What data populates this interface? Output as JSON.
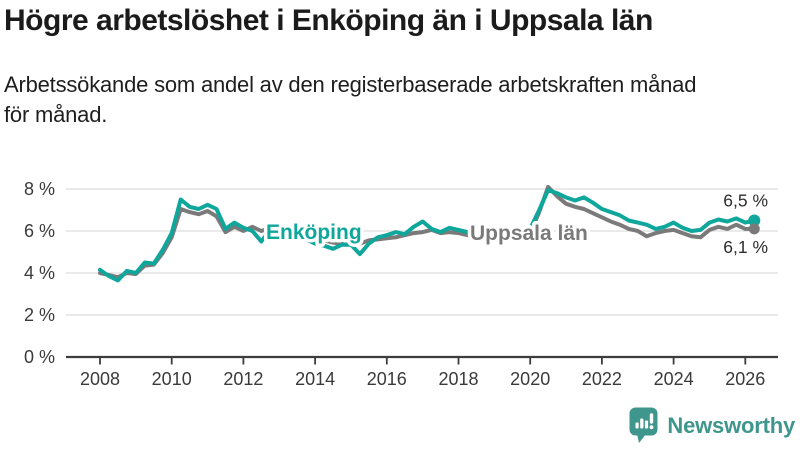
{
  "header": {
    "title": "Högre arbetslöshet i Enköping än i Uppsala län",
    "subtitle": "Arbetssökande som andel av den registerbaserade arbetskraften månad för månad."
  },
  "chart_data": {
    "type": "line",
    "title": "",
    "xlabel": "",
    "ylabel": "",
    "grid": "horizontal",
    "legend_position": "inline-labels-on-lines",
    "ylim": [
      0,
      8.6
    ],
    "xlim": [
      2007.1,
      2026.7
    ],
    "yticks": [
      0,
      2,
      4,
      6,
      8
    ],
    "ytick_labels": [
      "0 %",
      "2 %",
      "4 %",
      "6 %",
      "8 %"
    ],
    "xticks": [
      2008,
      2010,
      2012,
      2014,
      2016,
      2018,
      2020,
      2022,
      2024,
      2026
    ],
    "x": [
      2008,
      2008.25,
      2008.5,
      2008.75,
      2009,
      2009.25,
      2009.5,
      2009.75,
      2010,
      2010.25,
      2010.5,
      2010.75,
      2011,
      2011.25,
      2011.5,
      2011.75,
      2012,
      2012.25,
      2012.5,
      2012.75,
      2013,
      2013.25,
      2013.5,
      2013.75,
      2014,
      2014.25,
      2014.5,
      2014.75,
      2015,
      2015.25,
      2015.5,
      2015.75,
      2016,
      2016.25,
      2016.5,
      2016.75,
      2017,
      2017.25,
      2017.5,
      2017.75,
      2018,
      2018.25,
      2018.5,
      2018.75,
      2019,
      2019.25,
      2019.5,
      2019.75,
      2020,
      2020.25,
      2020.5,
      2020.75,
      2021,
      2021.25,
      2021.5,
      2021.75,
      2022,
      2022.25,
      2022.5,
      2022.75,
      2023,
      2023.25,
      2023.5,
      2023.75,
      2024,
      2024.25,
      2024.5,
      2024.75,
      2025,
      2025.25,
      2025.5,
      2025.75,
      2026,
      2026.25
    ],
    "series": [
      {
        "name": "Enköping",
        "color": "#0FA69B",
        "end_label": "6,5 %",
        "end_value": 6.5,
        "values": [
          4.15,
          3.85,
          3.65,
          4.1,
          4.0,
          4.5,
          4.45,
          5.1,
          5.9,
          7.5,
          7.15,
          7.05,
          7.25,
          7.05,
          6.1,
          6.4,
          6.15,
          6.0,
          5.5,
          6.1,
          6.2,
          6.0,
          5.8,
          5.6,
          5.4,
          5.3,
          5.15,
          5.35,
          5.35,
          4.9,
          5.4,
          5.7,
          5.8,
          5.95,
          5.85,
          6.2,
          6.45,
          6.1,
          5.95,
          6.15,
          6.05,
          5.95,
          5.85,
          5.8,
          5.75,
          5.8,
          5.9,
          6.0,
          6.1,
          7.0,
          7.95,
          7.8,
          7.6,
          7.45,
          7.6,
          7.35,
          7.05,
          6.9,
          6.75,
          6.5,
          6.4,
          6.3,
          6.1,
          6.2,
          6.4,
          6.15,
          6.0,
          6.05,
          6.4,
          6.55,
          6.45,
          6.6,
          6.4,
          6.5
        ]
      },
      {
        "name": "Uppsala län",
        "color": "#7A7A7A",
        "end_label": "6,1 %",
        "end_value": 6.1,
        "values": [
          4.0,
          3.9,
          3.8,
          4.0,
          3.95,
          4.35,
          4.4,
          4.95,
          5.7,
          7.05,
          6.9,
          6.8,
          6.95,
          6.7,
          5.95,
          6.2,
          6.0,
          6.2,
          6.0,
          6.15,
          6.1,
          5.9,
          5.7,
          5.6,
          5.5,
          5.55,
          5.45,
          5.4,
          5.4,
          5.4,
          5.55,
          5.6,
          5.65,
          5.7,
          5.8,
          5.9,
          5.95,
          6.05,
          5.9,
          5.95,
          5.9,
          5.8,
          5.7,
          5.65,
          5.55,
          5.6,
          5.65,
          5.8,
          5.9,
          6.9,
          8.1,
          7.65,
          7.3,
          7.15,
          7.05,
          6.85,
          6.65,
          6.45,
          6.3,
          6.1,
          6.0,
          5.75,
          5.9,
          6.0,
          6.05,
          5.9,
          5.75,
          5.7,
          6.05,
          6.2,
          6.1,
          6.3,
          6.1,
          6.1
        ]
      }
    ]
  },
  "footer": {
    "brand": "Newsworthy"
  },
  "colors": {
    "accent": "#0FA69B",
    "comparison": "#7A7A7A",
    "brand": "#3F968C"
  }
}
